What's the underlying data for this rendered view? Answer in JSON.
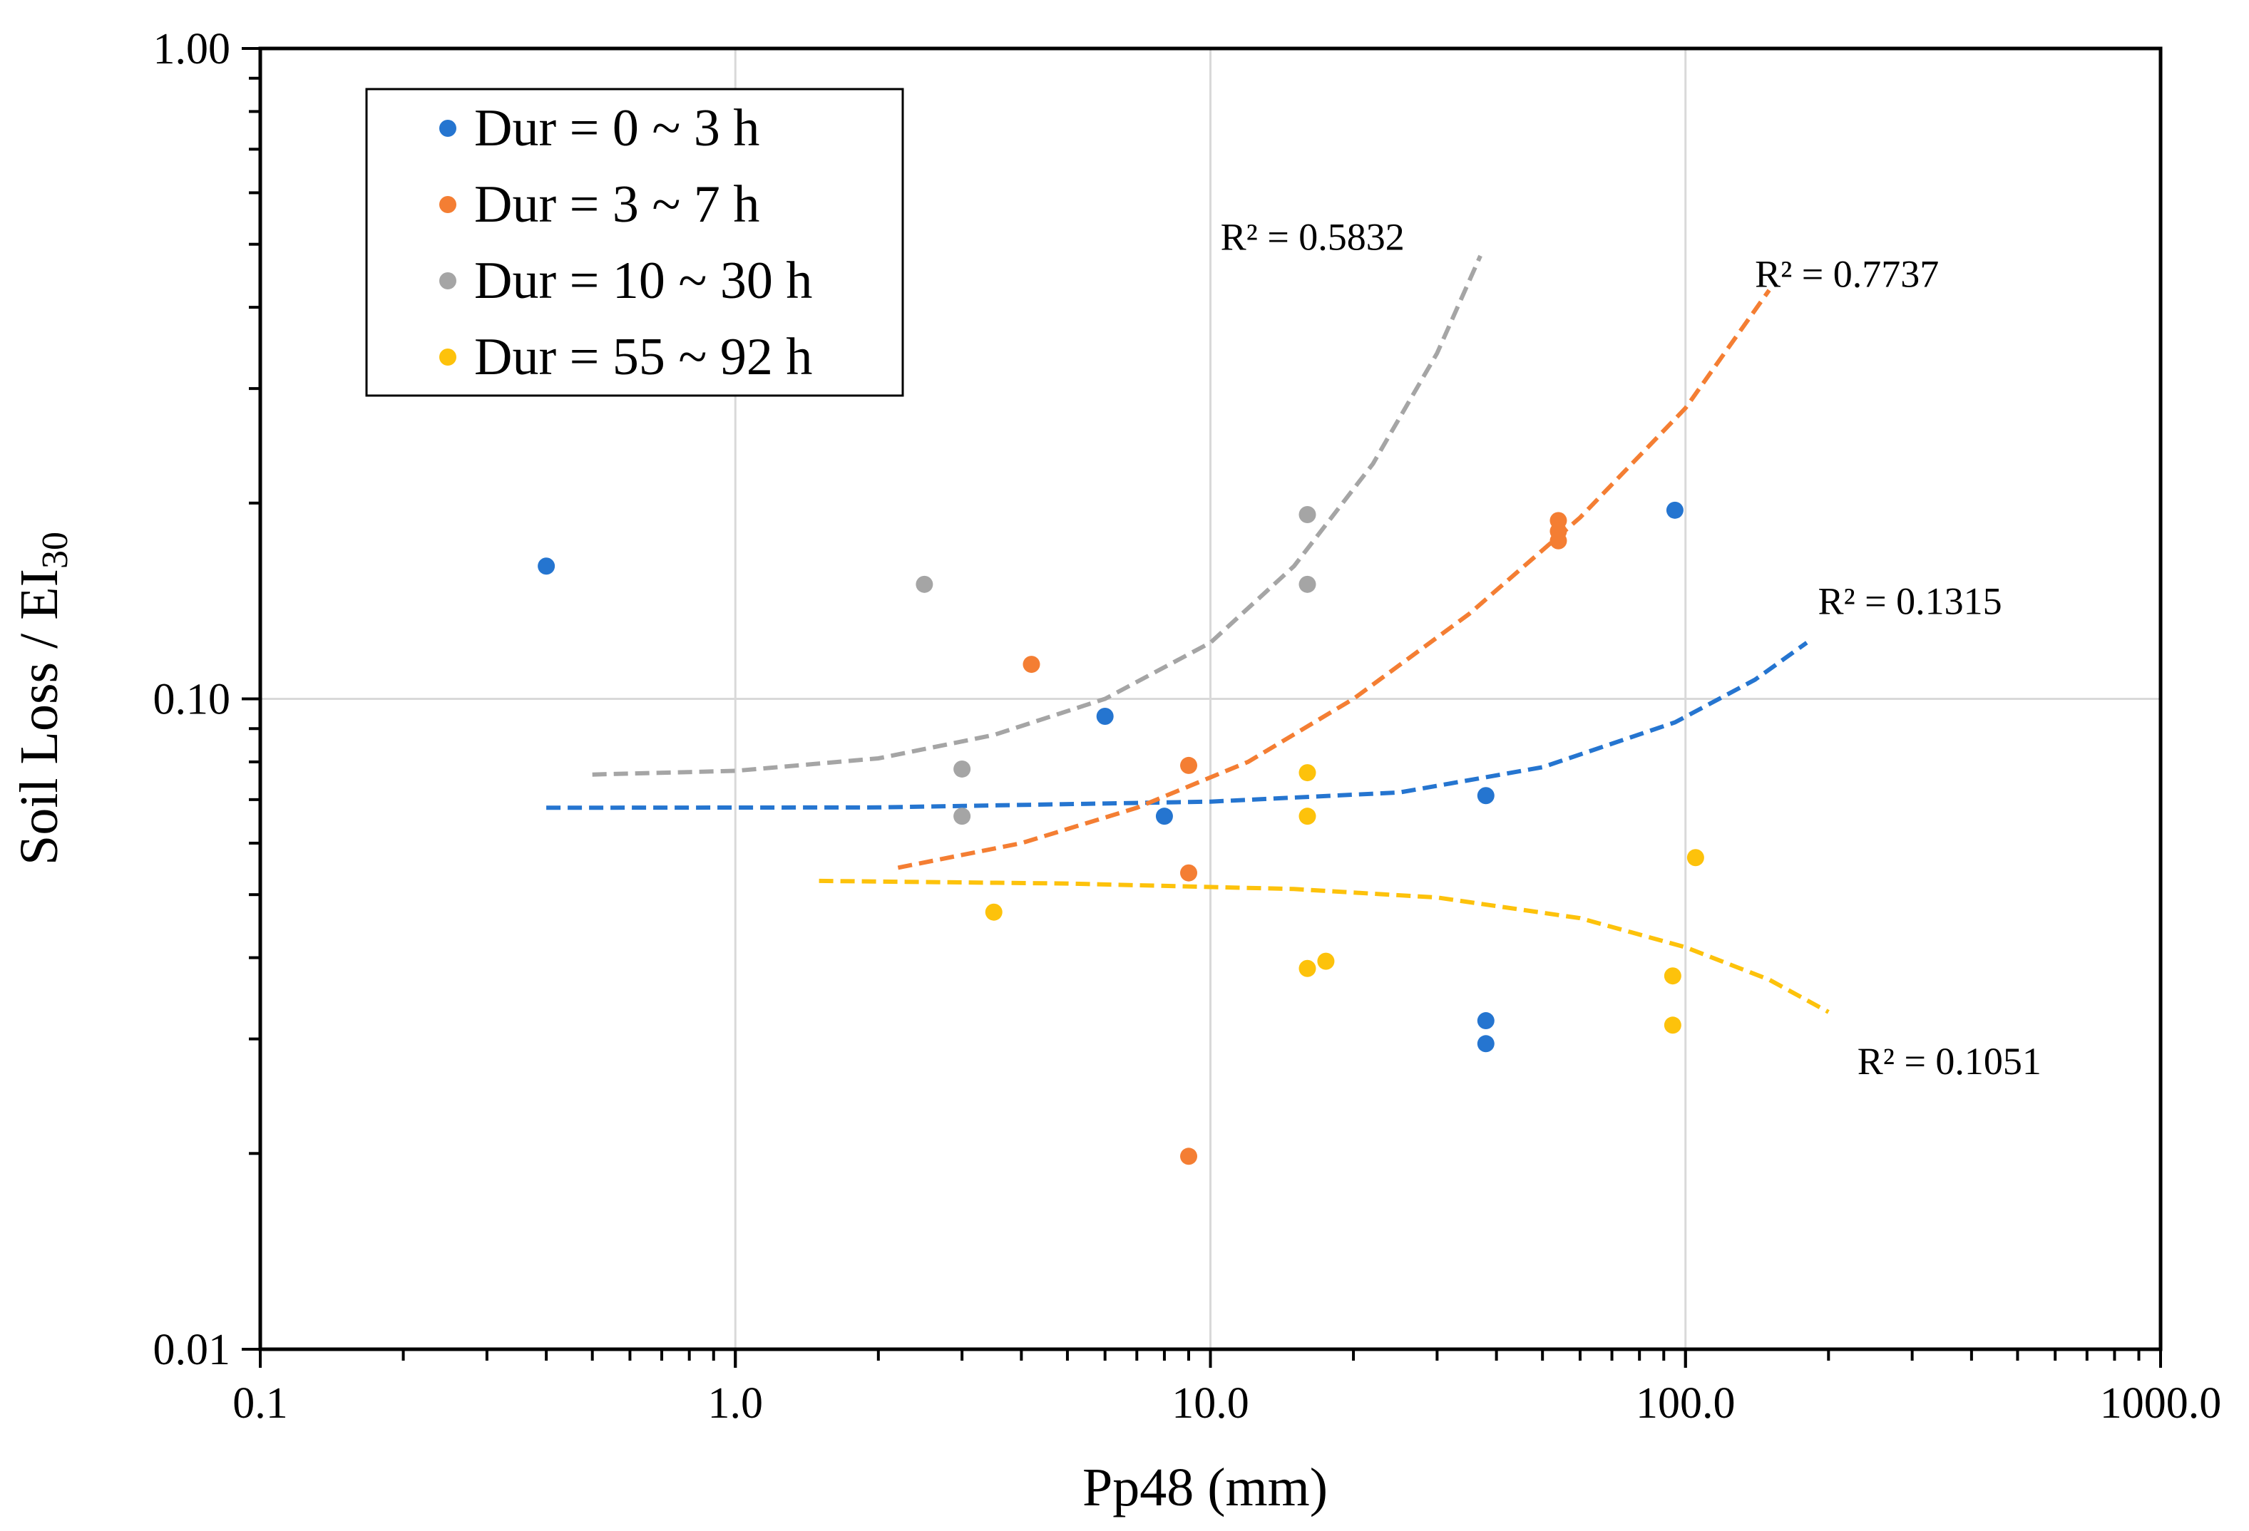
{
  "chart_data": {
    "type": "scatter",
    "xlabel": "Pp48 (mm)",
    "ylabel": "Soil Loss / EI",
    "ylabel_subscript": "30",
    "x_scale": "log",
    "y_scale": "log",
    "xlim": [
      0.1,
      1000
    ],
    "ylim": [
      0.01,
      1
    ],
    "x_ticks": [
      {
        "value": 0.1,
        "label": "0.1"
      },
      {
        "value": 1,
        "label": "1.0"
      },
      {
        "value": 10,
        "label": "10.0"
      },
      {
        "value": 100,
        "label": "100.0"
      },
      {
        "value": 1000,
        "label": "1000.0"
      }
    ],
    "y_ticks": [
      {
        "value": 0.01,
        "label": "0.01"
      },
      {
        "value": 0.1,
        "label": "0.10"
      },
      {
        "value": 1,
        "label": "1.00"
      }
    ],
    "grid": true,
    "legend_position": "top-left",
    "series": [
      {
        "name": "Dur = 0 ~ 3 h",
        "color": "#2575d0",
        "points": [
          [
            0.4,
            0.16
          ],
          [
            6,
            0.094
          ],
          [
            8,
            0.066
          ],
          [
            38,
            0.071
          ],
          [
            38,
            0.032
          ],
          [
            38,
            0.0295
          ],
          [
            95,
            0.195
          ]
        ],
        "trendline": {
          "r2_label": "R² = 0.1315",
          "x_start": 0.4,
          "x_end": 180,
          "points": [
            [
              0.4,
              0.068
            ],
            [
              2,
              0.0681
            ],
            [
              10,
              0.0695
            ],
            [
              25,
              0.0718
            ],
            [
              50,
              0.0785
            ],
            [
              95,
              0.092
            ],
            [
              140,
              0.107
            ],
            [
              180,
              0.122
            ]
          ]
        }
      },
      {
        "name": "Dur = 3 ~ 7 h",
        "color": "#f47e33",
        "points": [
          [
            4.2,
            0.113
          ],
          [
            9,
            0.079
          ],
          [
            9,
            0.054
          ],
          [
            9,
            0.0198
          ],
          [
            54,
            0.188
          ],
          [
            54,
            0.181
          ],
          [
            54,
            0.175
          ]
        ],
        "trendline": {
          "r2_label": "R² = 0.7737",
          "x_start": 2.2,
          "x_end": 150,
          "points": [
            [
              2.2,
              0.055
            ],
            [
              4,
              0.06
            ],
            [
              7,
              0.068
            ],
            [
              12,
              0.08
            ],
            [
              20,
              0.1
            ],
            [
              35,
              0.135
            ],
            [
              60,
              0.19
            ],
            [
              100,
              0.28
            ],
            [
              150,
              0.425
            ]
          ]
        }
      },
      {
        "name": "Dur = 10 ~ 30 h",
        "color": "#a5a5a5",
        "points": [
          [
            2.5,
            0.15
          ],
          [
            3,
            0.078
          ],
          [
            3,
            0.066
          ],
          [
            16,
            0.192
          ],
          [
            16,
            0.15
          ]
        ],
        "trendline": {
          "r2_label": "R² = 0.5832",
          "x_start": 0.5,
          "x_end": 37,
          "points": [
            [
              0.5,
              0.0765
            ],
            [
              1,
              0.0775
            ],
            [
              2,
              0.081
            ],
            [
              3.5,
              0.088
            ],
            [
              6,
              0.1
            ],
            [
              10,
              0.122
            ],
            [
              15,
              0.16
            ],
            [
              22,
              0.23
            ],
            [
              30,
              0.34
            ],
            [
              37,
              0.48
            ]
          ]
        }
      },
      {
        "name": "Dur = 55 ~ 92 h",
        "color": "#fdc20b",
        "points": [
          [
            3.5,
            0.047
          ],
          [
            16,
            0.077
          ],
          [
            16,
            0.066
          ],
          [
            16,
            0.0385
          ],
          [
            17.5,
            0.0395
          ],
          [
            94,
            0.0375
          ],
          [
            94,
            0.0315
          ],
          [
            105,
            0.057
          ]
        ],
        "trendline": {
          "r2_label": "R² = 0.1051",
          "x_start": 1.5,
          "x_end": 200,
          "points": [
            [
              1.5,
              0.0525
            ],
            [
              5,
              0.052
            ],
            [
              15,
              0.051
            ],
            [
              30,
              0.0495
            ],
            [
              60,
              0.046
            ],
            [
              100,
              0.0415
            ],
            [
              150,
              0.037
            ],
            [
              200,
              0.033
            ]
          ]
        }
      }
    ]
  }
}
